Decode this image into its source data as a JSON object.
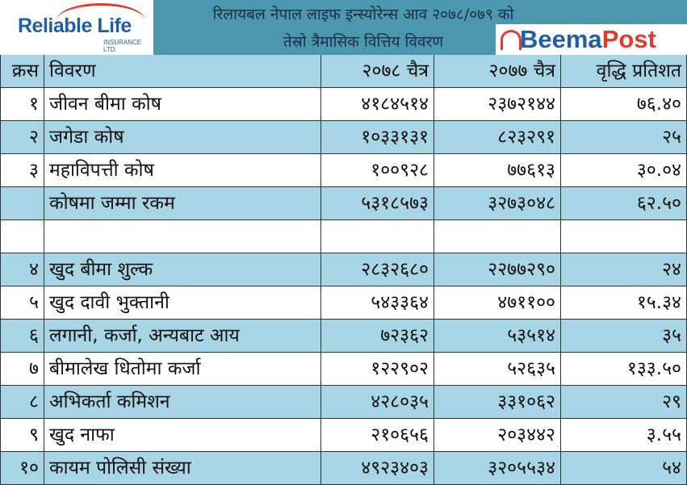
{
  "header": {
    "logo": "Reliable Life",
    "logo_sub": "INSURANCE LTD.",
    "title_lines": [
      "रिलायबल नेपाल लाइफ इन्स्योरेन्स आव २०७८/०७९ को",
      "तेस्रो त्रैमासिक वित्तिय विवरण"
    ],
    "brand": [
      "Beema",
      "Post"
    ]
  },
  "table": {
    "columns": [
      "क्रस",
      "विवरण",
      "२०७८ चैत्र",
      "२०७७ चैत्र",
      "वृद्धि प्रतिशत"
    ],
    "rows": [
      [
        "१",
        "जीवन बीमा कोष",
        "४१८४५१४",
        "२३७२१४४",
        "७६.४०"
      ],
      [
        "२",
        "जगेडा कोष",
        "१०३३१३१",
        "८२३२९१",
        "२५"
      ],
      [
        "३",
        "महाविपत्ती कोष",
        "१००९२८",
        "७७६१३",
        "३०.०४"
      ],
      [
        null,
        "कोषमा जम्मा रकम",
        "५३१८५७३",
        "३२७३०४८",
        "६२.५०"
      ],
      null,
      [
        "४",
        "खुद बीमा शुल्क",
        "२८३२६८०",
        "२२७७२९०",
        "२४"
      ],
      [
        "५",
        "खुद दावी भुक्तानी",
        "५४३३६४",
        "४७११००",
        "१५.३४"
      ],
      [
        "६",
        "लगानी, कर्जा, अन्यबाट आय",
        "७२३६२",
        "५३५१४",
        "३५"
      ],
      [
        "७",
        "बीमालेख धितोमा कर्जा",
        "१२२९०२",
        "५२६३५",
        "१३३.५०"
      ],
      [
        "८",
        "अभिकर्ता कमिशन",
        "४२८०३५",
        "३३१०६२",
        "२९"
      ],
      [
        "९",
        "खुद नाफा",
        "२१०६५६",
        "२०३४४२",
        "३.५५"
      ],
      [
        "१०",
        "कायम पोलिसी संख्या",
        "४९२३४०३",
        "३२०५५३४",
        "५४"
      ]
    ]
  }
}
